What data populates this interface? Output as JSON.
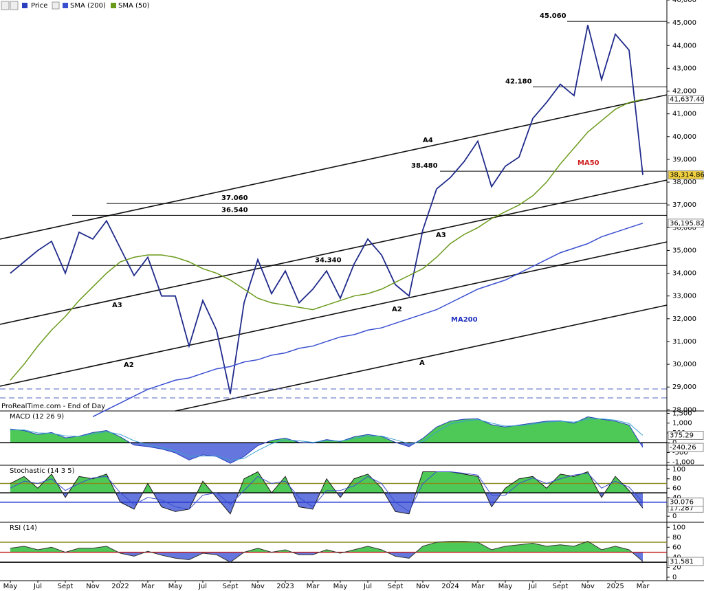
{
  "chart_data": [
    {
      "type": "line",
      "footer": "ProRealTime.com - End of Day",
      "categories": [
        "May",
        null,
        "Jul",
        null,
        "Sept",
        null,
        "Nov",
        null,
        "2022",
        null,
        "Mar",
        null,
        "May",
        null,
        "Jul",
        null,
        "Sept",
        null,
        "Nov",
        null,
        "2023",
        null,
        "Mar",
        null,
        "May",
        null,
        "Jul",
        null,
        "Sept",
        null,
        "Nov",
        null,
        "2024",
        null,
        "Mar",
        null,
        "May",
        null,
        "Jul",
        null,
        "Sept",
        null,
        "Nov",
        null,
        "2025",
        null,
        "Mar"
      ],
      "ylim": [
        27950,
        46000
      ],
      "yticks": [
        {
          "value": 28000,
          "label": "28,000"
        },
        {
          "value": 29000,
          "label": "29,000"
        },
        {
          "value": 30000,
          "label": "30,000"
        },
        {
          "value": 31000,
          "label": "31,000"
        },
        {
          "value": 32000,
          "label": "32,000"
        },
        {
          "value": 33000,
          "label": "33,000"
        },
        {
          "value": 34000,
          "label": "34,000"
        },
        {
          "value": 35000,
          "label": "35,000"
        },
        {
          "value": 36000,
          "label": "36,000"
        },
        {
          "value": 37000,
          "label": "37,000"
        },
        {
          "value": 38000,
          "label": "38,000"
        },
        {
          "value": 39000,
          "label": "39,000"
        },
        {
          "value": 40000,
          "label": "40,000"
        },
        {
          "value": 41000,
          "label": "41,000"
        },
        {
          "value": 42000,
          "label": "42,000"
        },
        {
          "value": 43000,
          "label": "43,000"
        },
        {
          "value": 44000,
          "label": "44,000"
        },
        {
          "value": 45000,
          "label": "45,000"
        },
        {
          "value": 46000,
          "label": "46,000"
        }
      ],
      "series": [
        {
          "name": "Price",
          "color": "#1f2a8a",
          "last_label": "38,314.86",
          "values": [
            34000,
            34500,
            35000,
            35400,
            34000,
            35800,
            35500,
            36300,
            35100,
            33900,
            34700,
            33000,
            33000,
            30800,
            32800,
            31500,
            28700,
            32700,
            34600,
            33100,
            34100,
            32700,
            33300,
            34100,
            32900,
            34400,
            35500,
            34800,
            33500,
            33000,
            35900,
            37700,
            38200,
            38900,
            39800,
            37800,
            38700,
            39100,
            40800,
            41500,
            42300,
            41800,
            44900,
            42500,
            44500,
            43800,
            38314.86
          ]
        },
        {
          "name": "SMA (200)",
          "color": "#3a4fd0",
          "last_label": "36,195.82",
          "values": [
            null,
            null,
            null,
            null,
            null,
            null,
            27700,
            28000,
            28300,
            28600,
            28900,
            29100,
            29300,
            29400,
            29600,
            29800,
            29900,
            30100,
            30200,
            30400,
            30500,
            30700,
            30800,
            31000,
            31200,
            31300,
            31500,
            31600,
            31800,
            32000,
            32200,
            32400,
            32700,
            33000,
            33300,
            33500,
            33700,
            34000,
            34300,
            34600,
            34900,
            35100,
            35300,
            35600,
            35800,
            36000,
            36195.82
          ]
        },
        {
          "name": "SMA (50)",
          "color": "#6a9a1a",
          "last_label": "41,637.40",
          "values": [
            29300,
            30000,
            30800,
            31500,
            32100,
            32800,
            33400,
            34000,
            34500,
            34700,
            34800,
            34800,
            34700,
            34500,
            34200,
            34000,
            33700,
            33300,
            32900,
            32700,
            32600,
            32500,
            32400,
            32600,
            32800,
            33000,
            33100,
            33300,
            33600,
            33900,
            34200,
            34700,
            35300,
            35700,
            36000,
            36400,
            36700,
            37000,
            37400,
            38000,
            38800,
            39500,
            40200,
            40700,
            41200,
            41500,
            41637.4
          ]
        }
      ],
      "levels": [
        {
          "value": 45060,
          "label": "45.060"
        },
        {
          "value": 42180,
          "label": "42.180"
        },
        {
          "value": 38480,
          "label": "38.480"
        },
        {
          "value": 37060,
          "label": "37.060"
        },
        {
          "value": 36540,
          "label": "36.540"
        },
        {
          "value": 34340,
          "label": "34.340"
        }
      ],
      "annotations": [
        "A4",
        "A3",
        "A3",
        "A2",
        "A2",
        "A",
        "MA50",
        "MA200"
      ]
    },
    {
      "type": "area",
      "title": "MACD (12 26 9)",
      "ylim": [
        -1150,
        1620
      ],
      "yticks": [
        {
          "value": 1500,
          "label": "1,500"
        },
        {
          "value": 1000,
          "label": "1,000"
        },
        500,
        0,
        -500,
        {
          "value": -1000,
          "label": "-1,000"
        }
      ],
      "levels": [
        0
      ],
      "level_colors": [
        "#000"
      ],
      "series": [
        {
          "color": "#2a3fc0",
          "last_label": "-240.26",
          "values": [
            700,
            620,
            420,
            520,
            250,
            330,
            520,
            620,
            300,
            -120,
            -200,
            -320,
            -520,
            -880,
            -620,
            -700,
            -1050,
            -700,
            -150,
            120,
            230,
            20,
            -20,
            160,
            60,
            300,
            420,
            320,
            20,
            -200,
            220,
            800,
            1100,
            1200,
            1220,
            920,
            800,
            900,
            1000,
            1100,
            1120,
            1000,
            1320,
            1200,
            1100,
            900,
            -240.26
          ]
        },
        {
          "color": "#3aa0d0",
          "last_label": "375.29",
          "values": [
            650,
            650,
            500,
            480,
            350,
            320,
            450,
            560,
            420,
            100,
            -100,
            -250,
            -420,
            -700,
            -680,
            -680,
            -900,
            -800,
            -400,
            -50,
            150,
            100,
            20,
            100,
            80,
            220,
            350,
            340,
            150,
            -50,
            50,
            550,
            950,
            1100,
            1180,
            1000,
            850,
            870,
            950,
            1050,
            1100,
            1050,
            1200,
            1220,
            1150,
            980,
            375.29
          ]
        }
      ]
    },
    {
      "type": "area",
      "title": "Stochastic (14 3 5)",
      "ylim": [
        -13,
        109
      ],
      "yticks": [
        100,
        80,
        60,
        40,
        20,
        0
      ],
      "levels": [
        70,
        50,
        30
      ],
      "level_colors": [
        "#8a8a20",
        "#000",
        "#2030d0"
      ],
      "series": [
        {
          "color": "#1a1a1a",
          "last_label": "17.287",
          "values": [
            70,
            85,
            60,
            90,
            40,
            85,
            80,
            90,
            30,
            15,
            70,
            20,
            10,
            15,
            75,
            40,
            5,
            80,
            95,
            50,
            85,
            20,
            15,
            80,
            40,
            80,
            90,
            60,
            10,
            5,
            95,
            95,
            95,
            90,
            85,
            20,
            60,
            80,
            85,
            60,
            90,
            85,
            95,
            40,
            85,
            55,
            17.287
          ]
        },
        {
          "color": "#3a4fd0",
          "last_label": "30.076",
          "values": [
            60,
            75,
            70,
            80,
            55,
            70,
            82,
            85,
            50,
            25,
            40,
            35,
            20,
            15,
            45,
            50,
            25,
            55,
            85,
            70,
            75,
            40,
            20,
            55,
            55,
            65,
            85,
            70,
            30,
            10,
            70,
            95,
            95,
            92,
            88,
            45,
            45,
            70,
            82,
            70,
            80,
            88,
            92,
            60,
            75,
            62,
            30.076
          ]
        }
      ]
    },
    {
      "type": "area",
      "title": "RSI (14)",
      "ylim": [
        -7,
        110
      ],
      "yticks": [
        100,
        80,
        60,
        40,
        20,
        0
      ],
      "levels": [
        70,
        50,
        30
      ],
      "level_colors": [
        "#8a8a20",
        "#c02020",
        "#000"
      ],
      "series": [
        {
          "color": "#333",
          "last_label": "31.581",
          "values": [
            58,
            62,
            55,
            60,
            50,
            58,
            58,
            62,
            48,
            42,
            52,
            44,
            38,
            35,
            48,
            45,
            30,
            50,
            58,
            50,
            55,
            45,
            45,
            55,
            48,
            55,
            62,
            55,
            42,
            38,
            62,
            70,
            72,
            72,
            70,
            55,
            62,
            65,
            68,
            62,
            65,
            62,
            72,
            55,
            62,
            55,
            31.581
          ]
        }
      ]
    }
  ]
}
